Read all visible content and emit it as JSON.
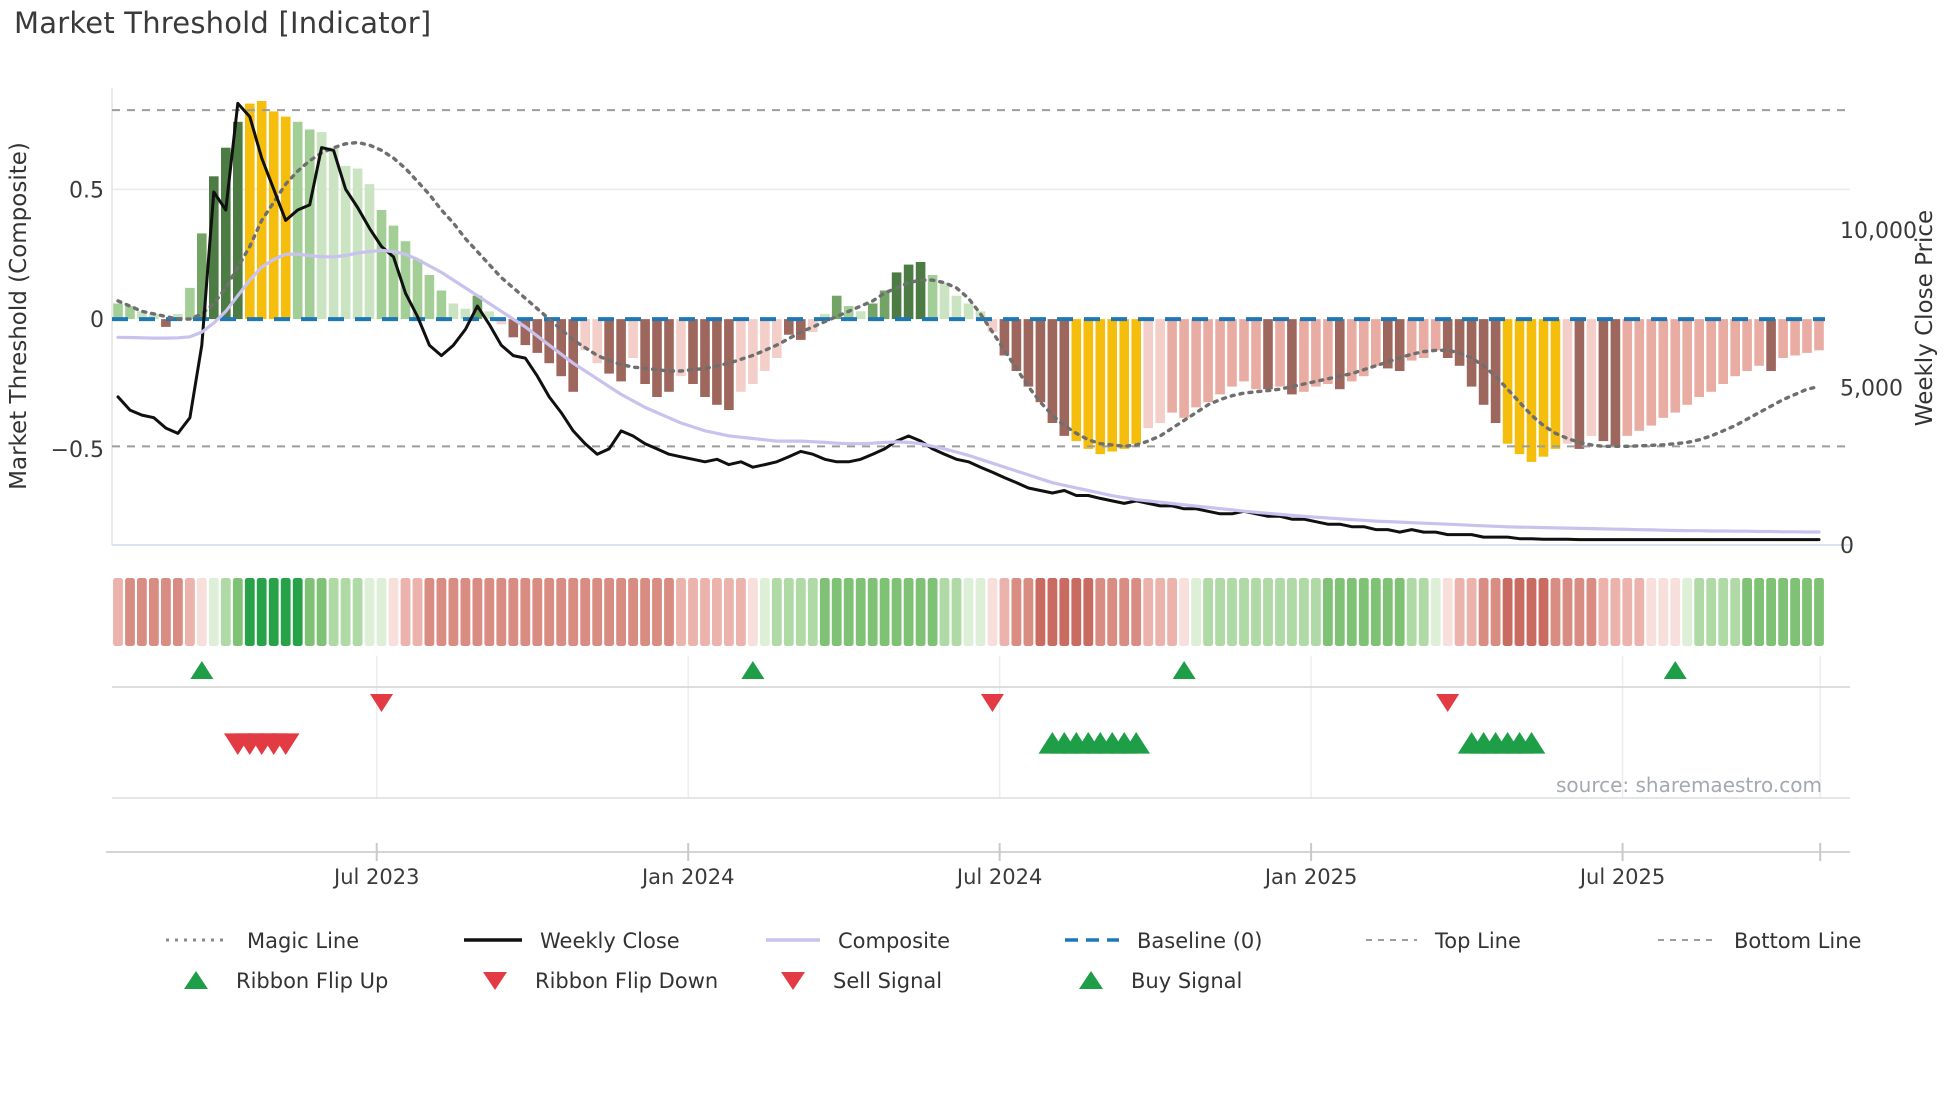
{
  "title": "Market Threshold [Indicator]",
  "source_note": "source: sharemaestro.com",
  "legend": {
    "row1": [
      {
        "label": "Magic Line",
        "swatch": "dotted-gray"
      },
      {
        "label": "Weekly Close",
        "swatch": "solid-black"
      },
      {
        "label": "Composite",
        "swatch": "solid-purple"
      },
      {
        "label": "Baseline (0)",
        "swatch": "dashed-blue"
      },
      {
        "label": "Top Line",
        "swatch": "dotted-gray-fine"
      },
      {
        "label": "Bottom Line",
        "swatch": "dotted-gray-fine"
      }
    ],
    "row2": [
      {
        "label": "Ribbon Flip Up",
        "marker": "up-green"
      },
      {
        "label": "Ribbon Flip Down",
        "marker": "down-red"
      },
      {
        "label": "Sell Signal",
        "marker": "down-red"
      },
      {
        "label": "Buy Signal",
        "marker": "up-green"
      }
    ]
  },
  "chart_data": {
    "type": "combo",
    "description": "Weekly market-threshold composite histogram with price overlay, trend ribbon and trade signals",
    "x": {
      "unit": "weeks",
      "count": 143,
      "ticks": [
        {
          "i": 21.6,
          "label": "Jul 2023"
        },
        {
          "i": 47.6,
          "label": "Jan 2024"
        },
        {
          "i": 73.6,
          "label": "Jul 2024"
        },
        {
          "i": 99.6,
          "label": "Jan 2025"
        },
        {
          "i": 125.6,
          "label": "Jul 2025"
        },
        {
          "i": 142.1,
          "label": ""
        }
      ]
    },
    "left_axis": {
      "title": "Market Threshold (Composite)",
      "range": [
        -0.87,
        0.89
      ],
      "ticks": [
        {
          "v": 0.5,
          "label": "0.5"
        },
        {
          "v": 0,
          "label": "0"
        },
        {
          "v": -0.5,
          "label": "−0.5"
        }
      ]
    },
    "right_axis": {
      "title": "Weekly Close Price",
      "range": [
        0,
        14500
      ],
      "ticks": [
        {
          "v": 10000,
          "label": "10,000"
        },
        {
          "v": 5000,
          "label": "5,000"
        },
        {
          "v": 0,
          "label": "0"
        }
      ]
    },
    "reference_lines": {
      "top_line": 0.805,
      "baseline": 0,
      "bottom_line": -0.49
    },
    "histogram": {
      "values": [
        0.06,
        0.05,
        0.03,
        0.02,
        -0.03,
        0.02,
        0.12,
        0.33,
        0.55,
        0.66,
        0.76,
        0.83,
        0.84,
        0.8,
        0.78,
        0.76,
        0.73,
        0.72,
        0.66,
        0.59,
        0.58,
        0.52,
        0.42,
        0.36,
        0.3,
        0.23,
        0.17,
        0.11,
        0.06,
        0.04,
        0.09,
        0.03,
        -0.02,
        -0.07,
        -0.1,
        -0.13,
        -0.17,
        -0.22,
        -0.28,
        -0.12,
        -0.17,
        -0.21,
        -0.24,
        -0.15,
        -0.25,
        -0.3,
        -0.28,
        -0.22,
        -0.25,
        -0.3,
        -0.33,
        -0.35,
        -0.28,
        -0.25,
        -0.2,
        -0.15,
        -0.06,
        -0.08,
        -0.05,
        0.02,
        0.09,
        0.05,
        0.03,
        0.06,
        0.11,
        0.18,
        0.21,
        0.22,
        0.17,
        0.14,
        0.09,
        0.06,
        0.03,
        -0.05,
        -0.14,
        -0.2,
        -0.26,
        -0.32,
        -0.4,
        -0.45,
        -0.47,
        -0.5,
        -0.52,
        -0.51,
        -0.5,
        -0.48,
        -0.42,
        -0.4,
        -0.36,
        -0.38,
        -0.34,
        -0.32,
        -0.29,
        -0.26,
        -0.24,
        -0.27,
        -0.27,
        -0.26,
        -0.29,
        -0.28,
        -0.26,
        -0.25,
        -0.27,
        -0.24,
        -0.22,
        -0.18,
        -0.19,
        -0.2,
        -0.16,
        -0.15,
        -0.12,
        -0.15,
        -0.18,
        -0.26,
        -0.33,
        -0.4,
        -0.48,
        -0.52,
        -0.55,
        -0.53,
        -0.5,
        -0.48,
        -0.5,
        -0.45,
        -0.47,
        -0.49,
        -0.45,
        -0.43,
        -0.41,
        -0.38,
        -0.36,
        -0.33,
        -0.3,
        -0.28,
        -0.25,
        -0.22,
        -0.2,
        -0.18,
        -0.2,
        -0.15,
        -0.14,
        -0.13,
        -0.12
      ],
      "colors": [
        "lg",
        "lg",
        "pg",
        "pg",
        "br",
        "pg",
        "lg",
        "mg",
        "dg",
        "dg",
        "dg",
        "yl",
        "yl",
        "yl",
        "yl",
        "lg",
        "lg",
        "pg",
        "pg",
        "pg",
        "pg",
        "pg",
        "lg",
        "lg",
        "lg",
        "lg",
        "lg",
        "lg",
        "pg",
        "pg",
        "mg",
        "pg",
        "lp",
        "br",
        "br",
        "br",
        "br",
        "br",
        "br",
        "lp",
        "lp",
        "br",
        "br",
        "lp",
        "br",
        "br",
        "br",
        "lp",
        "br",
        "br",
        "br",
        "br",
        "lp",
        "lp",
        "lp",
        "lp",
        "br",
        "br",
        "lp",
        "pg",
        "mg",
        "lg",
        "pg",
        "mg",
        "mg",
        "dg",
        "dg",
        "dg",
        "lg",
        "pg",
        "pg",
        "pg",
        "pg",
        "lp",
        "br",
        "br",
        "br",
        "br",
        "br",
        "br",
        "yl",
        "yl",
        "yl",
        "yl",
        "yl",
        "yl",
        "lp",
        "lp",
        "pk",
        "pk",
        "pk",
        "pk",
        "pk",
        "pk",
        "pk",
        "pk",
        "br",
        "pk",
        "br",
        "pk",
        "pk",
        "pk",
        "br",
        "pk",
        "pk",
        "pk",
        "br",
        "br",
        "pk",
        "pk",
        "pk",
        "br",
        "br",
        "br",
        "br",
        "br",
        "yl",
        "yl",
        "yl",
        "yl",
        "yl",
        "lp",
        "br",
        "lp",
        "br",
        "br",
        "pk",
        "pk",
        "pk",
        "pk",
        "pk",
        "pk",
        "pk",
        "pk",
        "pk",
        "pk",
        "pk",
        "pk",
        "br",
        "pk",
        "pk",
        "pk",
        "pk"
      ]
    },
    "series": [
      {
        "name": "Magic Line",
        "axis": "left",
        "style": "dotted-gray",
        "values": [
          0.07,
          0.05,
          0.03,
          0.02,
          0.01,
          0.0,
          0.0,
          0.02,
          0.06,
          0.12,
          0.2,
          0.28,
          0.38,
          0.45,
          0.52,
          0.57,
          0.61,
          0.64,
          0.66,
          0.675,
          0.68,
          0.67,
          0.65,
          0.62,
          0.58,
          0.53,
          0.48,
          0.42,
          0.37,
          0.31,
          0.26,
          0.21,
          0.16,
          0.12,
          0.08,
          0.04,
          0.0,
          -0.04,
          -0.08,
          -0.11,
          -0.14,
          -0.16,
          -0.175,
          -0.185,
          -0.19,
          -0.195,
          -0.2,
          -0.2,
          -0.195,
          -0.19,
          -0.18,
          -0.17,
          -0.155,
          -0.14,
          -0.12,
          -0.1,
          -0.075,
          -0.05,
          -0.03,
          -0.01,
          0.01,
          0.03,
          0.05,
          0.07,
          0.1,
          0.12,
          0.14,
          0.15,
          0.15,
          0.14,
          0.12,
          0.08,
          0.02,
          -0.05,
          -0.12,
          -0.19,
          -0.26,
          -0.32,
          -0.37,
          -0.41,
          -0.44,
          -0.465,
          -0.48,
          -0.485,
          -0.49,
          -0.485,
          -0.47,
          -0.45,
          -0.42,
          -0.39,
          -0.36,
          -0.33,
          -0.31,
          -0.295,
          -0.285,
          -0.28,
          -0.275,
          -0.27,
          -0.26,
          -0.25,
          -0.24,
          -0.23,
          -0.22,
          -0.21,
          -0.195,
          -0.18,
          -0.165,
          -0.15,
          -0.135,
          -0.125,
          -0.12,
          -0.12,
          -0.13,
          -0.15,
          -0.18,
          -0.22,
          -0.27,
          -0.32,
          -0.37,
          -0.41,
          -0.44,
          -0.46,
          -0.475,
          -0.485,
          -0.49,
          -0.49,
          -0.49,
          -0.488,
          -0.486,
          -0.484,
          -0.48,
          -0.475,
          -0.465,
          -0.45,
          -0.43,
          -0.41,
          -0.385,
          -0.36,
          -0.335,
          -0.31,
          -0.29,
          -0.27,
          -0.26
        ]
      },
      {
        "name": "Weekly Close",
        "axis": "right",
        "style": "solid-black",
        "values": [
          4700,
          4280,
          4120,
          4040,
          3710,
          3540,
          4040,
          6340,
          11200,
          10630,
          14010,
          13590,
          12280,
          11290,
          10300,
          10630,
          10790,
          12610,
          12520,
          11290,
          10710,
          10050,
          9470,
          9140,
          7990,
          7250,
          6340,
          6010,
          6340,
          6840,
          7580,
          7000,
          6340,
          6010,
          5930,
          5360,
          4700,
          4200,
          3620,
          3210,
          2880,
          3050,
          3620,
          3460,
          3210,
          3050,
          2880,
          2800,
          2720,
          2640,
          2720,
          2550,
          2640,
          2470,
          2550,
          2640,
          2800,
          2970,
          2880,
          2720,
          2640,
          2640,
          2720,
          2880,
          3050,
          3300,
          3460,
          3300,
          3050,
          2880,
          2720,
          2640,
          2470,
          2310,
          2140,
          1980,
          1810,
          1730,
          1650,
          1730,
          1570,
          1570,
          1480,
          1400,
          1320,
          1400,
          1320,
          1240,
          1240,
          1150,
          1150,
          1070,
          990,
          990,
          1070,
          990,
          910,
          910,
          820,
          820,
          740,
          660,
          660,
          580,
          580,
          490,
          490,
          410,
          490,
          410,
          410,
          330,
          330,
          330,
          250,
          250,
          250,
          200,
          200,
          180,
          180,
          180,
          170,
          170,
          170,
          170,
          170,
          170,
          170,
          170,
          170,
          170,
          170,
          170,
          170,
          170,
          170,
          170,
          170,
          170,
          170,
          170,
          170
        ]
      },
      {
        "name": "Composite",
        "axis": "left",
        "style": "solid-purple",
        "values": [
          -0.07,
          -0.071,
          -0.072,
          -0.073,
          -0.073,
          -0.072,
          -0.068,
          -0.05,
          -0.015,
          0.03,
          0.09,
          0.15,
          0.2,
          0.23,
          0.25,
          0.25,
          0.245,
          0.24,
          0.24,
          0.245,
          0.255,
          0.26,
          0.265,
          0.26,
          0.25,
          0.23,
          0.205,
          0.18,
          0.15,
          0.12,
          0.09,
          0.06,
          0.03,
          0.0,
          -0.03,
          -0.065,
          -0.1,
          -0.135,
          -0.17,
          -0.2,
          -0.23,
          -0.26,
          -0.29,
          -0.315,
          -0.34,
          -0.36,
          -0.38,
          -0.4,
          -0.415,
          -0.43,
          -0.44,
          -0.45,
          -0.455,
          -0.46,
          -0.465,
          -0.47,
          -0.47,
          -0.47,
          -0.472,
          -0.475,
          -0.478,
          -0.48,
          -0.48,
          -0.478,
          -0.475,
          -0.473,
          -0.475,
          -0.48,
          -0.49,
          -0.5,
          -0.512,
          -0.525,
          -0.54,
          -0.555,
          -0.57,
          -0.585,
          -0.6,
          -0.615,
          -0.63,
          -0.64,
          -0.65,
          -0.66,
          -0.67,
          -0.68,
          -0.688,
          -0.695,
          -0.7,
          -0.705,
          -0.71,
          -0.715,
          -0.72,
          -0.725,
          -0.73,
          -0.735,
          -0.74,
          -0.744,
          -0.748,
          -0.752,
          -0.756,
          -0.76,
          -0.763,
          -0.766,
          -0.769,
          -0.772,
          -0.775,
          -0.778,
          -0.78,
          -0.782,
          -0.784,
          -0.786,
          -0.788,
          -0.79,
          -0.792,
          -0.794,
          -0.796,
          -0.798,
          -0.8,
          -0.801,
          -0.802,
          -0.803,
          -0.804,
          -0.805,
          -0.806,
          -0.807,
          -0.808,
          -0.809,
          -0.81,
          -0.811,
          -0.812,
          -0.813,
          -0.814,
          -0.815,
          -0.815,
          -0.816,
          -0.816,
          -0.817,
          -0.817,
          -0.818,
          -0.818,
          -0.819,
          -0.819,
          -0.82,
          -0.82
        ]
      }
    ],
    "ribbon": {
      "colors": [
        "r1",
        "r2",
        "r2",
        "r2",
        "r2",
        "r2",
        "r1",
        "r0",
        "g0",
        "g1",
        "g2",
        "g3",
        "g3",
        "g3",
        "g3",
        "g3",
        "g2",
        "g2",
        "g1",
        "g1",
        "g1",
        "g0",
        "g0",
        "r0",
        "r1",
        "r1",
        "r2",
        "r2",
        "r2",
        "r2",
        "r2",
        "r2",
        "r2",
        "r2",
        "r2",
        "r2",
        "r2",
        "r2",
        "r2",
        "r2",
        "r2",
        "r2",
        "r2",
        "r2",
        "r2",
        "r2",
        "r2",
        "r1",
        "r1",
        "r1",
        "r1",
        "r1",
        "r1",
        "r0",
        "g0",
        "g1",
        "g1",
        "g1",
        "g1",
        "g2",
        "g2",
        "g2",
        "g2",
        "g2",
        "g2",
        "g2",
        "g2",
        "g2",
        "g2",
        "g1",
        "g1",
        "g0",
        "g0",
        "r0",
        "r1",
        "r2",
        "r2",
        "r3",
        "r3",
        "r3",
        "r3",
        "r3",
        "r2",
        "r2",
        "r2",
        "r2",
        "r1",
        "r1",
        "r1",
        "r0",
        "g0",
        "g1",
        "g1",
        "g1",
        "g1",
        "g1",
        "g1",
        "g1",
        "g1",
        "g1",
        "g1",
        "g2",
        "g2",
        "g2",
        "g2",
        "g2",
        "g2",
        "g2",
        "g1",
        "g1",
        "g0",
        "r0",
        "r1",
        "r1",
        "r2",
        "r2",
        "r3",
        "r3",
        "r3",
        "r3",
        "r2",
        "r2",
        "r2",
        "r2",
        "r1",
        "r1",
        "r1",
        "r1",
        "r0",
        "r0",
        "r0",
        "g0",
        "g1",
        "g1",
        "g1",
        "g1",
        "g2",
        "g2",
        "g2",
        "g2",
        "g2",
        "g2",
        "g2"
      ]
    },
    "signals": {
      "ribbon_flip_up_weeks": [
        7,
        53,
        89,
        130
      ],
      "ribbon_flip_down_weeks": [
        22,
        73,
        111
      ],
      "sell_signal_weeks": [
        10,
        11,
        12,
        13,
        14
      ],
      "buy_signal_weeks": [
        78,
        79,
        80,
        81,
        82,
        83,
        84,
        85,
        113,
        114,
        115,
        116,
        117,
        118
      ]
    },
    "palette": {
      "bars": {
        "dg": "#4C7C44",
        "mg": "#74A465",
        "lg": "#A3CF97",
        "pg": "#CAE4C1",
        "yl": "#F6BE0C",
        "br": "#9E675D",
        "pk": "#E9ACA3",
        "lp": "#F4CFC9"
      },
      "ribbon": {
        "r0": "#F7DFDB",
        "r1": "#EBB3AB",
        "r2": "#D88C82",
        "r3": "#C96B60",
        "g0": "#DDEFD7",
        "g1": "#AFD9A5",
        "g2": "#7FC276",
        "g3": "#27A248"
      },
      "lines": {
        "magic": "#6F6F6F",
        "close": "#101010",
        "composite": "#C9C2EE",
        "baseline": "#1F77B4",
        "top_bottom": "#9C9C9C"
      },
      "signals": {
        "up": "#1E9E47",
        "down": "#E23B43"
      }
    }
  }
}
